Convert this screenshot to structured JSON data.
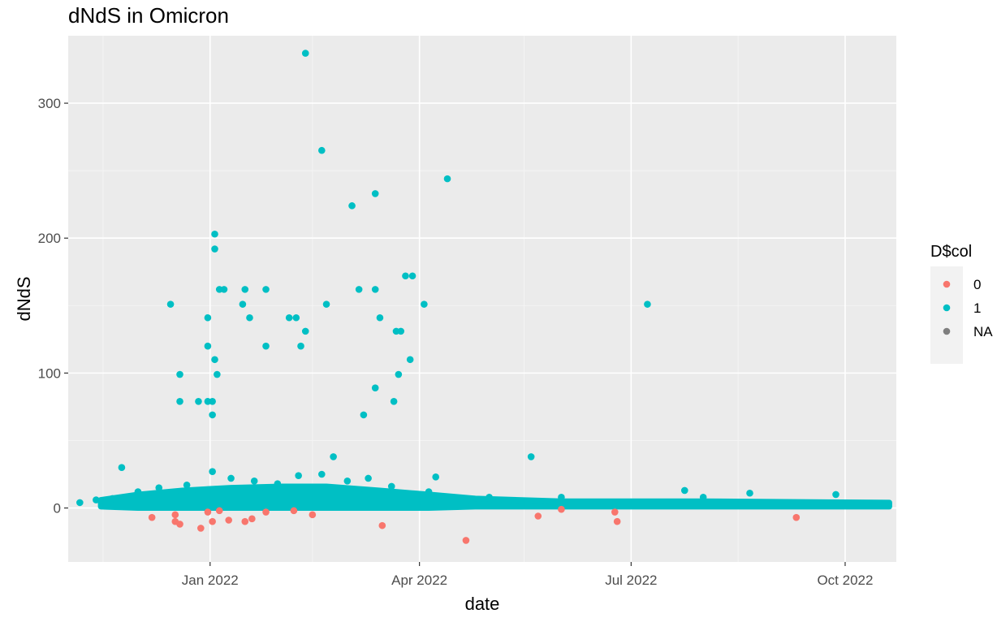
{
  "chart_data": {
    "type": "scatter",
    "title": "dNdS in Omicron",
    "xlabel": "date",
    "ylabel": "dNdS",
    "xlim": [
      "2021-11-01",
      "2022-10-23"
    ],
    "ylim": [
      -40,
      350
    ],
    "x_ticks": [
      {
        "date": "2022-01-01",
        "label": "Jan 2022"
      },
      {
        "date": "2022-04-01",
        "label": "Apr 2022"
      },
      {
        "date": "2022-07-01",
        "label": "Jul 2022"
      },
      {
        "date": "2022-10-01",
        "label": "Oct 2022"
      }
    ],
    "x_minor_ticks": [
      "2021-11-16",
      "2022-02-14",
      "2022-05-16",
      "2022-08-16"
    ],
    "y_ticks": [
      0,
      100,
      200,
      300
    ],
    "y_minor_ticks": [
      50,
      150,
      250
    ],
    "grid": true,
    "legend": {
      "title": "D$col",
      "placement": "right",
      "entries": [
        {
          "label": "0",
          "color": "#F8766D"
        },
        {
          "label": "1",
          "color": "#00BFC4"
        },
        {
          "label": "NA",
          "color": "#7F7F7F"
        }
      ]
    },
    "series": [
      {
        "name": "0",
        "color": "#F8766D",
        "points": [
          [
            "2021-12-07",
            -7
          ],
          [
            "2021-12-17",
            -5
          ],
          [
            "2021-12-17",
            -10
          ],
          [
            "2021-12-19",
            -12
          ],
          [
            "2021-12-28",
            -15
          ],
          [
            "2021-12-31",
            -3
          ],
          [
            "2022-01-02",
            -10
          ],
          [
            "2022-01-05",
            -2
          ],
          [
            "2022-01-09",
            -9
          ],
          [
            "2022-01-16",
            -10
          ],
          [
            "2022-01-19",
            -8
          ],
          [
            "2022-01-25",
            -3
          ],
          [
            "2022-02-06",
            -2
          ],
          [
            "2022-02-14",
            -5
          ],
          [
            "2022-03-16",
            -13
          ],
          [
            "2022-04-21",
            -24
          ],
          [
            "2022-05-22",
            -6
          ],
          [
            "2022-06-01",
            -1
          ],
          [
            "2022-06-24",
            -3
          ],
          [
            "2022-06-25",
            -10
          ],
          [
            "2022-09-10",
            -7
          ]
        ]
      },
      {
        "name": "1",
        "color": "#00BFC4",
        "points": [
          [
            "2021-11-06",
            4
          ],
          [
            "2021-11-13",
            6
          ],
          [
            "2021-11-17",
            5
          ],
          [
            "2021-11-20",
            7
          ],
          [
            "2021-11-24",
            30
          ],
          [
            "2021-12-15",
            151
          ],
          [
            "2021-12-19",
            99
          ],
          [
            "2021-12-19",
            79
          ],
          [
            "2021-12-27",
            79
          ],
          [
            "2021-12-31",
            141
          ],
          [
            "2021-12-31",
            120
          ],
          [
            "2021-12-31",
            79
          ],
          [
            "2022-01-02",
            69
          ],
          [
            "2022-01-02",
            79
          ],
          [
            "2022-01-03",
            110
          ],
          [
            "2022-01-03",
            192
          ],
          [
            "2022-01-03",
            203
          ],
          [
            "2022-01-04",
            99
          ],
          [
            "2022-01-05",
            162
          ],
          [
            "2022-01-07",
            162
          ],
          [
            "2022-01-02",
            27
          ],
          [
            "2022-01-15",
            151
          ],
          [
            "2022-01-16",
            162
          ],
          [
            "2022-01-18",
            141
          ],
          [
            "2022-01-25",
            162
          ],
          [
            "2022-01-25",
            120
          ],
          [
            "2022-02-04",
            141
          ],
          [
            "2022-02-07",
            141
          ],
          [
            "2022-02-09",
            120
          ],
          [
            "2022-02-11",
            131
          ],
          [
            "2022-02-11",
            337
          ],
          [
            "2022-02-18",
            265
          ],
          [
            "2022-02-20",
            151
          ],
          [
            "2022-02-23",
            38
          ],
          [
            "2022-03-03",
            224
          ],
          [
            "2022-03-06",
            162
          ],
          [
            "2022-03-08",
            69
          ],
          [
            "2022-03-13",
            162
          ],
          [
            "2022-03-13",
            89
          ],
          [
            "2022-03-13",
            233
          ],
          [
            "2022-03-15",
            141
          ],
          [
            "2022-03-21",
            79
          ],
          [
            "2022-03-22",
            131
          ],
          [
            "2022-03-23",
            99
          ],
          [
            "2022-03-24",
            131
          ],
          [
            "2022-03-26",
            172
          ],
          [
            "2022-03-28",
            110
          ],
          [
            "2022-03-29",
            172
          ],
          [
            "2022-04-03",
            151
          ],
          [
            "2022-04-08",
            23
          ],
          [
            "2022-04-13",
            244
          ],
          [
            "2022-05-19",
            38
          ],
          [
            "2022-07-08",
            151
          ],
          [
            "2022-07-24",
            13
          ],
          [
            "2022-08-21",
            11
          ],
          [
            "2022-09-27",
            10
          ],
          [
            "2021-12-01",
            12
          ],
          [
            "2021-12-10",
            15
          ],
          [
            "2021-12-22",
            17
          ],
          [
            "2022-01-10",
            22
          ],
          [
            "2022-01-20",
            20
          ],
          [
            "2022-01-30",
            18
          ],
          [
            "2022-02-08",
            24
          ],
          [
            "2022-02-18",
            25
          ],
          [
            "2022-03-01",
            20
          ],
          [
            "2022-03-10",
            22
          ],
          [
            "2022-03-20",
            16
          ],
          [
            "2022-04-05",
            12
          ],
          [
            "2022-05-01",
            8
          ],
          [
            "2022-06-01",
            8
          ],
          [
            "2022-08-01",
            8
          ]
        ]
      }
    ],
    "dense_band": {
      "series": "1",
      "color": "#00BFC4",
      "x_range": [
        "2021-11-15",
        "2022-10-20"
      ],
      "profile": [
        [
          "2021-11-15",
          1,
          6
        ],
        [
          "2021-12-01",
          0,
          10
        ],
        [
          "2021-12-20",
          0,
          13
        ],
        [
          "2022-01-10",
          0,
          15
        ],
        [
          "2022-02-01",
          0,
          16
        ],
        [
          "2022-02-20",
          0,
          16
        ],
        [
          "2022-03-15",
          0,
          13
        ],
        [
          "2022-04-05",
          0,
          10
        ],
        [
          "2022-04-25",
          1,
          7
        ],
        [
          "2022-06-01",
          1,
          5
        ],
        [
          "2022-08-01",
          1,
          5
        ],
        [
          "2022-10-20",
          1,
          4
        ]
      ]
    }
  }
}
